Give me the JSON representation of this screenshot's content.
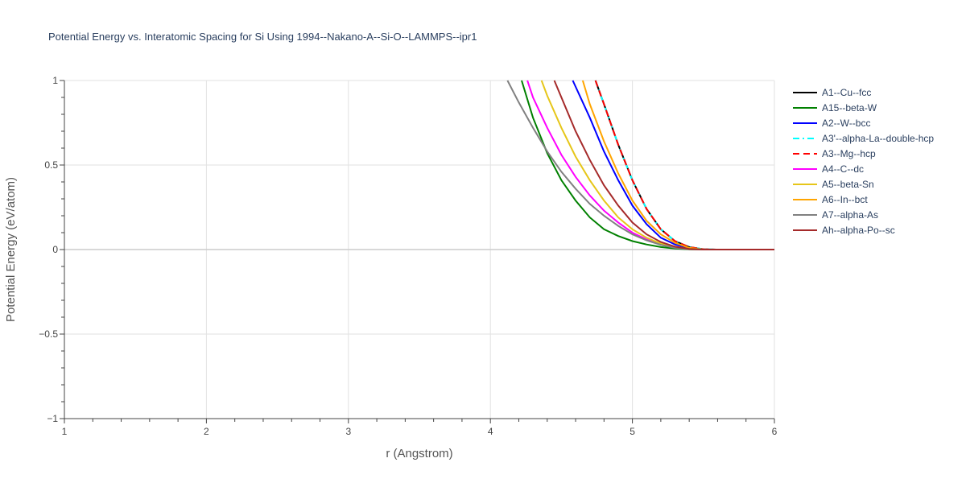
{
  "chart_data": {
    "type": "line",
    "title": "Potential Energy vs. Interatomic Spacing for Si Using 1994--Nakano-A--Si-O--LAMMPS--ipr1",
    "xlabel": "r (Angstrom)",
    "ylabel": "Potential Energy (eV/atom)",
    "xlim": [
      1,
      6
    ],
    "ylim": [
      -1,
      1
    ],
    "xticks": [
      1,
      2,
      3,
      4,
      5,
      6
    ],
    "xtick_labels": [
      "1",
      "2",
      "3",
      "4",
      "5",
      "6"
    ],
    "yticks": [
      -1,
      -0.5,
      0,
      0.5,
      1
    ],
    "ytick_labels": [
      "−1",
      "−0.5",
      "0",
      "0.5",
      "1"
    ],
    "grid": true,
    "legend_position": "right",
    "series": [
      {
        "name": "A1--Cu--fcc",
        "color": "#000000",
        "dash": "solid",
        "x": [
          4.74,
          4.8,
          4.9,
          5.0,
          5.1,
          5.2,
          5.3,
          5.4,
          5.5,
          5.6,
          6.0
        ],
        "y": [
          1.0,
          0.86,
          0.62,
          0.41,
          0.24,
          0.12,
          0.05,
          0.015,
          0.002,
          0,
          0
        ]
      },
      {
        "name": "A15--beta-W",
        "color": "#008000",
        "dash": "solid",
        "x": [
          4.22,
          4.3,
          4.4,
          4.5,
          4.6,
          4.7,
          4.8,
          4.9,
          5.0,
          5.1,
          5.2,
          5.3,
          5.4,
          5.5,
          6.0
        ],
        "y": [
          1.0,
          0.78,
          0.57,
          0.41,
          0.29,
          0.19,
          0.12,
          0.08,
          0.05,
          0.03,
          0.015,
          0.006,
          0.001,
          0,
          0
        ]
      },
      {
        "name": "A2--W--bcc",
        "color": "#0000ff",
        "dash": "solid",
        "x": [
          4.58,
          4.7,
          4.8,
          4.9,
          5.0,
          5.1,
          5.2,
          5.3,
          5.4,
          5.5,
          6.0
        ],
        "y": [
          1.0,
          0.78,
          0.58,
          0.41,
          0.26,
          0.15,
          0.07,
          0.03,
          0.008,
          0,
          0
        ]
      },
      {
        "name": "A3'--alpha-La--double-hcp",
        "color": "#00ffff",
        "dash": "dashdot",
        "x": [
          4.74,
          4.8,
          4.9,
          5.0,
          5.1,
          5.2,
          5.3,
          5.4,
          5.5,
          5.6,
          6.0
        ],
        "y": [
          1.0,
          0.86,
          0.62,
          0.41,
          0.24,
          0.12,
          0.05,
          0.015,
          0.002,
          0,
          0
        ]
      },
      {
        "name": "A3--Mg--hcp",
        "color": "#ff0000",
        "dash": "dash",
        "x": [
          4.74,
          4.8,
          4.9,
          5.0,
          5.1,
          5.2,
          5.3,
          5.4,
          5.5,
          5.6,
          6.0
        ],
        "y": [
          1.0,
          0.86,
          0.62,
          0.41,
          0.24,
          0.12,
          0.05,
          0.015,
          0.002,
          0,
          0
        ]
      },
      {
        "name": "A4--C--dc",
        "color": "#ff00ff",
        "dash": "solid",
        "x": [
          4.26,
          4.3,
          4.4,
          4.5,
          4.6,
          4.7,
          4.8,
          4.9,
          5.0,
          5.1,
          5.2,
          5.3,
          5.4,
          5.5,
          6.0
        ],
        "y": [
          1.0,
          0.9,
          0.72,
          0.56,
          0.43,
          0.32,
          0.23,
          0.16,
          0.1,
          0.06,
          0.03,
          0.012,
          0.003,
          0,
          0
        ]
      },
      {
        "name": "A5--beta-Sn",
        "color": "#e6c619",
        "dash": "solid",
        "x": [
          4.36,
          4.4,
          4.5,
          4.6,
          4.7,
          4.8,
          4.9,
          5.0,
          5.1,
          5.2,
          5.3,
          5.4,
          5.5,
          6.0
        ],
        "y": [
          1.0,
          0.91,
          0.72,
          0.55,
          0.41,
          0.29,
          0.19,
          0.12,
          0.07,
          0.035,
          0.014,
          0.003,
          0,
          0
        ]
      },
      {
        "name": "A6--In--bct",
        "color": "#ffa500",
        "dash": "solid",
        "x": [
          4.65,
          4.7,
          4.8,
          4.9,
          5.0,
          5.1,
          5.2,
          5.3,
          5.4,
          5.5,
          6.0
        ],
        "y": [
          1.0,
          0.86,
          0.64,
          0.45,
          0.29,
          0.17,
          0.09,
          0.04,
          0.01,
          0,
          0
        ]
      },
      {
        "name": "A7--alpha-As",
        "color": "#808080",
        "dash": "solid",
        "x": [
          4.12,
          4.2,
          4.3,
          4.4,
          4.5,
          4.6,
          4.7,
          4.8,
          4.9,
          5.0,
          5.1,
          5.2,
          5.3,
          5.4,
          5.5,
          6.0
        ],
        "y": [
          1.0,
          0.87,
          0.72,
          0.58,
          0.46,
          0.36,
          0.27,
          0.2,
          0.14,
          0.09,
          0.055,
          0.028,
          0.01,
          0.002,
          0,
          0
        ]
      },
      {
        "name": "Ah--alpha-Po--sc",
        "color": "#a52a2a",
        "dash": "solid",
        "x": [
          4.45,
          4.5,
          4.6,
          4.7,
          4.8,
          4.9,
          5.0,
          5.1,
          5.2,
          5.3,
          5.4,
          5.5,
          6.0
        ],
        "y": [
          1.0,
          0.9,
          0.7,
          0.53,
          0.38,
          0.26,
          0.16,
          0.09,
          0.045,
          0.017,
          0.004,
          0,
          0
        ]
      }
    ]
  }
}
